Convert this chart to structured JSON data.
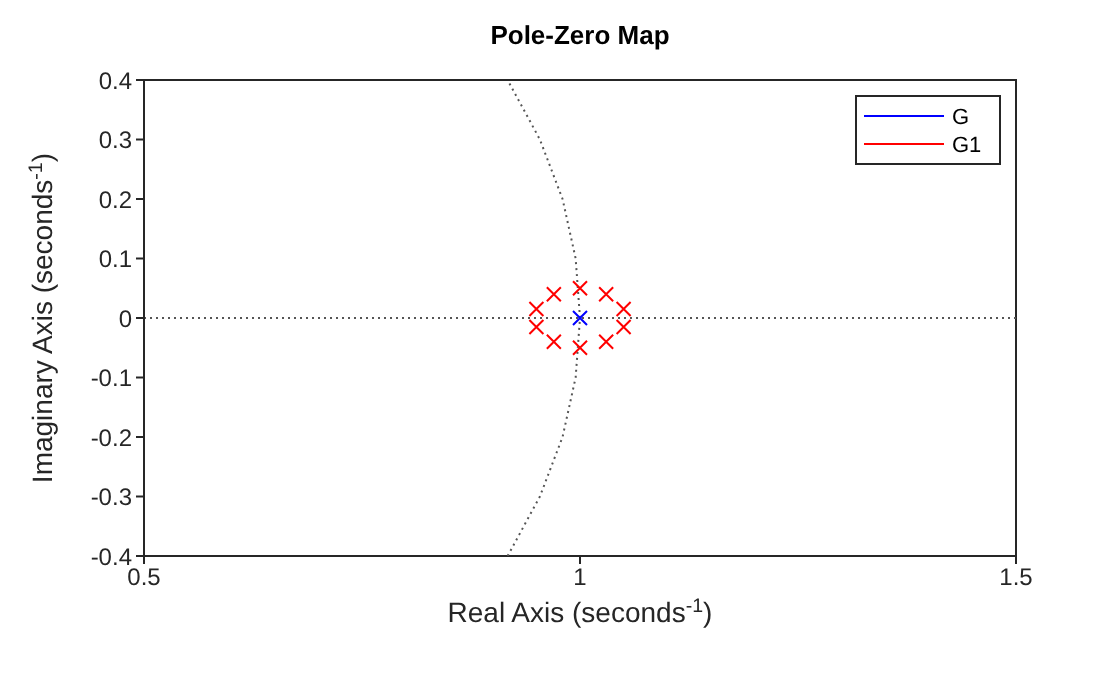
{
  "chart_data": {
    "type": "scatter",
    "title": "Pole-Zero Map",
    "xlabel": "Real Axis (seconds$^{-1}$)",
    "ylabel": "Imaginary Axis (seconds$^{-1}$)",
    "xlim": [
      0.5,
      1.5
    ],
    "xticks": [
      0.5,
      1,
      1.5
    ],
    "ylim": [
      -0.4,
      0.4
    ],
    "yticks": [
      -0.4,
      -0.3,
      -0.2,
      -0.1,
      0,
      0.1,
      0.2,
      0.3,
      0.4
    ],
    "legend": "top right",
    "marker": "cross",
    "ref_lines": [
      {
        "axis": "y",
        "value": 0,
        "color": "#555555",
        "line_style": "dotted"
      }
    ],
    "series": [
      {
        "type": "line",
        "color": "#555555",
        "line_style": "dotted",
        "marker": "none",
        "x": [
          0.917,
          0.954,
          0.98,
          0.995,
          1.0,
          0.995,
          0.98,
          0.954,
          0.917
        ],
        "values": [
          -0.4,
          -0.3,
          -0.2,
          -0.1,
          0,
          0.1,
          0.2,
          0.3,
          0.4
        ]
      },
      {
        "name": "G",
        "color": "#0000ff",
        "x": [
          1.0
        ],
        "values": [
          0
        ]
      },
      {
        "name": "G1",
        "color": "#ff0000",
        "x": [
          0.97,
          1.03,
          0.95,
          1.05,
          0.95,
          1.05,
          0.97,
          1.03,
          1.0,
          1.0
        ],
        "values": [
          0.04,
          0.04,
          0.015,
          0.015,
          -0.015,
          -0.015,
          -0.04,
          -0.04,
          0.05,
          -0.05
        ]
      }
    ]
  }
}
